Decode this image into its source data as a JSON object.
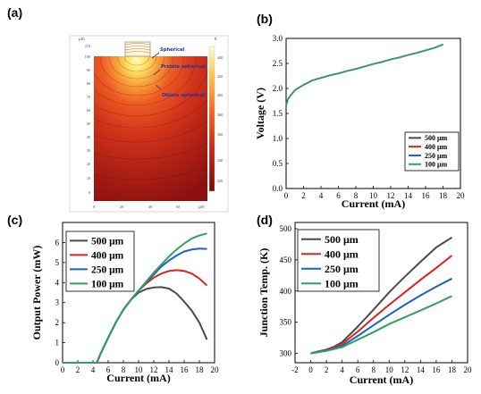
{
  "panels": [
    {
      "letter": "(a)"
    },
    {
      "letter": "(b)"
    },
    {
      "letter": "(c)"
    },
    {
      "letter": "(d)"
    }
  ],
  "simulation": {
    "x_unit": "μm",
    "y_unit": "μm",
    "colorbar_unit": "K",
    "x_ticks": [
      "0",
      "20",
      "40",
      "60"
    ],
    "y_ticks": [
      "0",
      "10",
      "20",
      "30",
      "40",
      "50",
      "60",
      "70",
      "80",
      "90",
      "100",
      "110"
    ],
    "colorbar_ticks": [
      "320",
      "340",
      "360",
      "380",
      "400",
      "420",
      "440"
    ],
    "annotations": [
      "Spherical",
      "Prolate spherical",
      "Oblate spherical"
    ],
    "colors": {
      "hot": "#fff7a0",
      "mid": "#e8401c",
      "cold": "#8c1010"
    }
  },
  "chart_data": [
    {
      "id": "b",
      "type": "line",
      "title": "",
      "xlabel": "Current (mA)",
      "ylabel": "Voltage (V)",
      "xlim": [
        0,
        20
      ],
      "ylim": [
        0.0,
        3.0
      ],
      "x_ticks": [
        0,
        2,
        4,
        6,
        8,
        10,
        12,
        14,
        16,
        18,
        20
      ],
      "y_ticks": [
        0.0,
        0.5,
        1.0,
        1.5,
        2.0,
        2.5,
        3.0
      ],
      "legend": "bottom-right",
      "series": [
        {
          "name": "500 μm",
          "color": "#4a4a4a",
          "x": [
            0,
            0.2,
            0.5,
            1,
            1.5,
            2,
            3,
            4,
            5,
            6,
            7,
            8,
            9,
            10,
            11,
            12,
            13,
            14,
            15,
            16,
            17,
            18
          ],
          "y": [
            1.65,
            1.78,
            1.86,
            1.96,
            2.02,
            2.07,
            2.16,
            2.21,
            2.26,
            2.3,
            2.35,
            2.39,
            2.44,
            2.49,
            2.53,
            2.58,
            2.62,
            2.67,
            2.71,
            2.76,
            2.81,
            2.88
          ]
        },
        {
          "name": "400 μm",
          "color": "#e02020",
          "x": [
            0,
            0.2,
            0.5,
            1,
            1.5,
            2,
            3,
            4,
            5,
            6,
            7,
            8,
            9,
            10,
            11,
            12,
            13,
            14,
            15,
            16,
            17,
            18
          ],
          "y": [
            1.65,
            1.78,
            1.86,
            1.96,
            2.02,
            2.07,
            2.16,
            2.21,
            2.26,
            2.3,
            2.35,
            2.39,
            2.44,
            2.49,
            2.53,
            2.58,
            2.62,
            2.67,
            2.71,
            2.76,
            2.81,
            2.88
          ]
        },
        {
          "name": "250 μm",
          "color": "#2060c0",
          "x": [
            0,
            0.2,
            0.5,
            1,
            1.5,
            2,
            3,
            4,
            5,
            6,
            7,
            8,
            9,
            10,
            11,
            12,
            13,
            14,
            15,
            16,
            17,
            18
          ],
          "y": [
            1.65,
            1.78,
            1.86,
            1.96,
            2.02,
            2.07,
            2.16,
            2.21,
            2.26,
            2.3,
            2.35,
            2.39,
            2.44,
            2.49,
            2.53,
            2.58,
            2.62,
            2.67,
            2.71,
            2.76,
            2.81,
            2.88
          ]
        },
        {
          "name": "100 μm",
          "color": "#30a060",
          "x": [
            0,
            0.2,
            0.5,
            1,
            1.5,
            2,
            3,
            4,
            5,
            6,
            7,
            8,
            9,
            10,
            11,
            12,
            13,
            14,
            15,
            16,
            17,
            18
          ],
          "y": [
            1.65,
            1.78,
            1.86,
            1.96,
            2.02,
            2.07,
            2.16,
            2.21,
            2.26,
            2.3,
            2.35,
            2.39,
            2.44,
            2.49,
            2.53,
            2.58,
            2.62,
            2.67,
            2.71,
            2.76,
            2.81,
            2.88
          ]
        }
      ]
    },
    {
      "id": "c",
      "type": "line",
      "title": "",
      "xlabel": "Current (mA)",
      "ylabel": "Output Power (mW)",
      "xlim": [
        0,
        20
      ],
      "ylim": [
        0,
        7
      ],
      "x_ticks": [
        0,
        2,
        4,
        6,
        8,
        10,
        12,
        14,
        16,
        18,
        20
      ],
      "y_ticks": [
        0,
        1,
        2,
        3,
        4,
        5,
        6
      ],
      "legend": "top-left",
      "series": [
        {
          "name": "500 μm",
          "color": "#4a4a4a",
          "x": [
            0,
            4.5,
            5,
            6,
            7,
            8,
            9,
            10,
            11,
            12,
            13,
            14,
            15,
            16,
            17,
            18,
            19
          ],
          "y": [
            0,
            0,
            0.45,
            1.25,
            2.0,
            2.65,
            3.15,
            3.5,
            3.68,
            3.76,
            3.77,
            3.7,
            3.45,
            3.05,
            2.6,
            2.0,
            1.15
          ]
        },
        {
          "name": "400 μm",
          "color": "#e02020",
          "x": [
            0,
            4.5,
            5,
            6,
            7,
            8,
            9,
            10,
            11,
            12,
            13,
            14,
            15,
            16,
            17,
            18,
            19
          ],
          "y": [
            0,
            0,
            0.45,
            1.25,
            2.0,
            2.65,
            3.15,
            3.6,
            3.95,
            4.25,
            4.45,
            4.58,
            4.62,
            4.58,
            4.45,
            4.2,
            3.85
          ]
        },
        {
          "name": "250 μm",
          "color": "#2060c0",
          "x": [
            0,
            4.5,
            5,
            6,
            7,
            8,
            9,
            10,
            11,
            12,
            13,
            14,
            15,
            16,
            17,
            18,
            19
          ],
          "y": [
            0,
            0,
            0.45,
            1.25,
            2.0,
            2.65,
            3.15,
            3.6,
            4.0,
            4.4,
            4.8,
            5.1,
            5.35,
            5.55,
            5.65,
            5.7,
            5.68
          ]
        },
        {
          "name": "100 μm",
          "color": "#30a060",
          "x": [
            0,
            4.5,
            5,
            6,
            7,
            8,
            9,
            10,
            11,
            12,
            13,
            14,
            15,
            16,
            17,
            18,
            19
          ],
          "y": [
            0,
            0,
            0.45,
            1.25,
            2.0,
            2.65,
            3.15,
            3.6,
            4.05,
            4.5,
            4.9,
            5.3,
            5.65,
            5.95,
            6.2,
            6.35,
            6.45
          ]
        }
      ]
    },
    {
      "id": "d",
      "type": "line",
      "title": "",
      "xlabel": "Current (mA)",
      "ylabel": "Junction Temp. (K)",
      "xlim": [
        -2,
        20
      ],
      "ylim": [
        285,
        510
      ],
      "x_ticks": [
        -2,
        0,
        2,
        4,
        6,
        8,
        10,
        12,
        14,
        16,
        18,
        20
      ],
      "y_ticks": [
        300,
        350,
        400,
        450,
        500
      ],
      "legend": "top-left",
      "series": [
        {
          "name": "500 μm",
          "color": "#4a4a4a",
          "x": [
            0,
            1,
            2,
            3,
            4,
            6,
            8,
            10,
            12,
            14,
            16,
            18
          ],
          "y": [
            300,
            303,
            306,
            311,
            318,
            343,
            370,
            398,
            423,
            447,
            470,
            486
          ]
        },
        {
          "name": "400 μm",
          "color": "#e02020",
          "x": [
            0,
            1,
            2,
            3,
            4,
            6,
            8,
            10,
            12,
            14,
            16,
            18
          ],
          "y": [
            300,
            303,
            306,
            310,
            315,
            335,
            357,
            378,
            398,
            418,
            437,
            457
          ]
        },
        {
          "name": "250 μm",
          "color": "#2060c0",
          "x": [
            0,
            1,
            2,
            3,
            4,
            6,
            8,
            10,
            12,
            14,
            16,
            18
          ],
          "y": [
            300,
            302,
            305,
            308,
            312,
            328,
            345,
            362,
            378,
            393,
            407,
            420
          ]
        },
        {
          "name": "100 μm",
          "color": "#30a060",
          "x": [
            0,
            1,
            2,
            3,
            4,
            6,
            8,
            10,
            12,
            14,
            16,
            18
          ],
          "y": [
            300,
            302,
            304,
            307,
            310,
            322,
            334,
            347,
            358,
            369,
            380,
            392
          ]
        }
      ]
    }
  ]
}
